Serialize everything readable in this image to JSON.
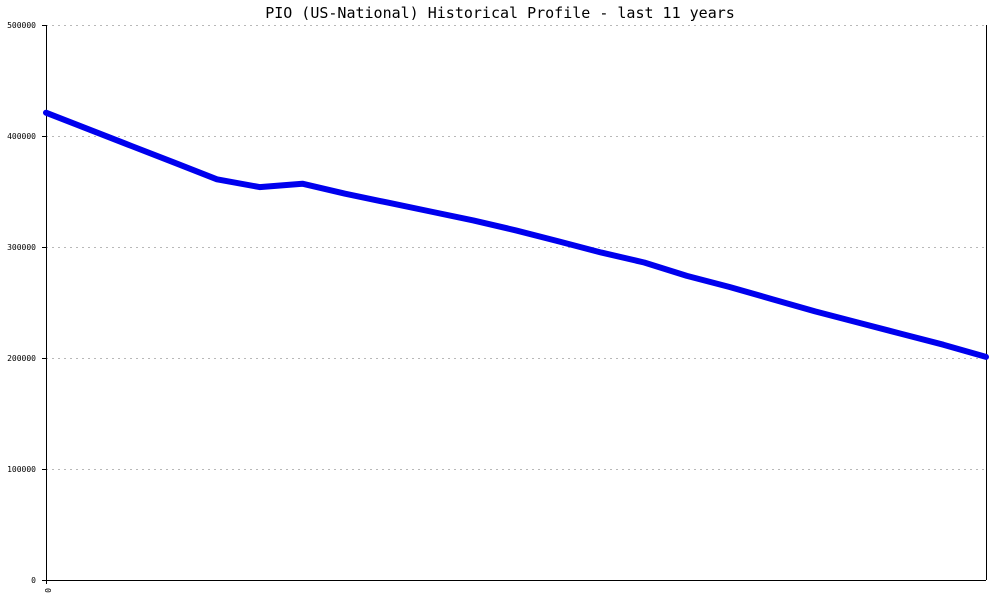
{
  "chart_data": {
    "type": "line",
    "title": "PIO (US-National) Historical Profile - last 11 years",
    "xlabel": "",
    "ylabel": "",
    "xlim": [
      0,
      11
    ],
    "ylim": [
      0,
      500000
    ],
    "x_tick_labels": [
      "0"
    ],
    "y_tick_labels": [
      "0",
      "100000",
      "200000",
      "300000",
      "400000",
      "500000"
    ],
    "y_ticks": [
      0,
      100000,
      200000,
      300000,
      400000,
      500000
    ],
    "grid": true,
    "series": [
      {
        "color": "#0000ee",
        "x": [
          0,
          0.5,
          1,
          1.5,
          2,
          2.5,
          3,
          3.5,
          4,
          4.5,
          5,
          5.5,
          6,
          6.5,
          7,
          7.5,
          8,
          8.5,
          9,
          9.5,
          10,
          10.5,
          11
        ],
        "values": [
          421000,
          406000,
          391000,
          376000,
          361000,
          354000,
          357000,
          348000,
          340000,
          332000,
          324000,
          315000,
          305000,
          295000,
          286000,
          274000,
          264000,
          253000,
          242000,
          232000,
          222000,
          212000,
          201000
        ]
      }
    ]
  }
}
